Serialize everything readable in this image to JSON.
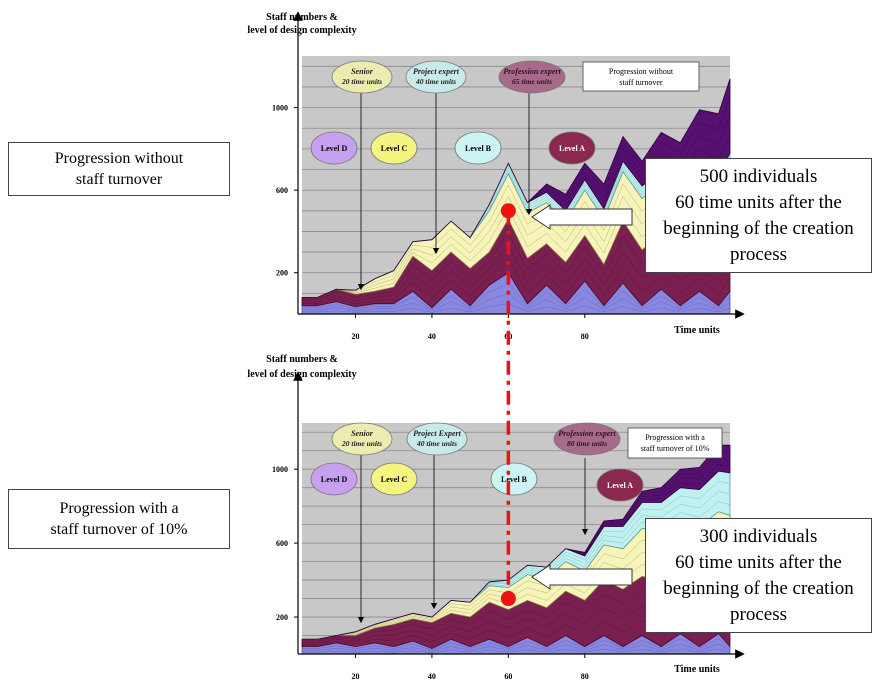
{
  "colors": {
    "plot_bg": "#c8c8c8",
    "band_bottom": "#8888e0",
    "band_maroon": "#7a2050",
    "band_yellow": "#f6f4b8",
    "band_cyan": "#c0f0f0",
    "band_purple": "#551070",
    "marker": "#ee1111",
    "level_d": "#c8a0f0",
    "level_c": "#f4f480",
    "level_b": "#ccf4f4",
    "level_a": "#8a2850",
    "senior": "#ecebb0",
    "project": "#c8eaea",
    "profession": "#a86a8a"
  },
  "left_labels": {
    "top": [
      "Progression without",
      "staff turnover"
    ],
    "bottom": [
      "Progression with a",
      "staff turnover of 10%"
    ]
  },
  "callouts": {
    "top": [
      "500 individuals",
      "60 time units after the",
      "beginning of the creation",
      "process"
    ],
    "bottom": [
      "300 individuals",
      "60 time units after the",
      "beginning of the creation",
      "process"
    ]
  },
  "chart_data": [
    {
      "type": "area",
      "title": "",
      "ylabel": [
        "Staff numbers &",
        "level of design complexity"
      ],
      "xlabel": "Time units",
      "x_ticks": [
        20,
        40,
        60,
        80
      ],
      "y_ticks": [
        200,
        600,
        1000
      ],
      "xlim": [
        6,
        118
      ],
      "ylim": [
        0,
        1250
      ],
      "legend_box": [
        "Progression without",
        "staff turnover"
      ],
      "level_labels": [
        "Level D",
        "Level C",
        "Level B",
        "Level A"
      ],
      "expert_labels": [
        {
          "lines": [
            "Senior",
            "20 time units"
          ],
          "x": 20
        },
        {
          "lines": [
            "Project expert",
            "40 time units"
          ],
          "x": 40
        },
        {
          "lines": [
            "Profession expert",
            "65 time units"
          ],
          "x": 65
        }
      ],
      "marker": {
        "x": 60,
        "y": 500
      },
      "x": [
        6,
        10,
        15,
        20,
        25,
        30,
        35,
        40,
        45,
        50,
        55,
        60,
        65,
        70,
        75,
        80,
        85,
        90,
        95,
        100,
        105,
        110,
        115,
        118
      ],
      "series": [
        {
          "band": "bottom",
          "values": [
            40,
            40,
            60,
            35,
            50,
            50,
            110,
            30,
            120,
            40,
            140,
            200,
            50,
            140,
            50,
            160,
            40,
            150,
            40,
            120,
            40,
            110,
            40,
            110
          ]
        },
        {
          "band": "maroon",
          "values": [
            40,
            40,
            60,
            60,
            60,
            80,
            170,
            180,
            180,
            180,
            160,
            260,
            220,
            200,
            200,
            220,
            200,
            300,
            270,
            270,
            240,
            250,
            220,
            240
          ]
        },
        {
          "band": "yellow",
          "values": [
            0,
            0,
            0,
            20,
            60,
            80,
            70,
            150,
            150,
            150,
            200,
            220,
            220,
            200,
            200,
            220,
            220,
            240,
            250,
            250,
            280,
            300,
            320,
            330
          ]
        },
        {
          "band": "cyan",
          "values": [
            0,
            0,
            0,
            0,
            0,
            0,
            0,
            0,
            0,
            0,
            30,
            50,
            50,
            50,
            50,
            50,
            50,
            50,
            60,
            60,
            70,
            80,
            90,
            100
          ]
        },
        {
          "band": "purple",
          "values": [
            0,
            0,
            0,
            0,
            0,
            0,
            0,
            0,
            0,
            0,
            0,
            0,
            0,
            40,
            80,
            80,
            120,
            120,
            120,
            180,
            200,
            250,
            300,
            360
          ]
        }
      ]
    },
    {
      "type": "area",
      "title": "",
      "ylabel": [
        "Staff numbers &",
        "level of design complexity"
      ],
      "xlabel": "Time units",
      "x_ticks": [
        20,
        40,
        60,
        80
      ],
      "y_ticks": [
        200,
        600,
        1000
      ],
      "xlim": [
        6,
        118
      ],
      "ylim": [
        0,
        1250
      ],
      "legend_box": [
        "Progression with a",
        "staff turnover of 10%"
      ],
      "level_labels": [
        "Level D",
        "Level C",
        "Level B",
        "Level A"
      ],
      "expert_labels": [
        {
          "lines": [
            "Senior",
            "20 time units"
          ],
          "x": 20
        },
        {
          "lines": [
            "Project Expert",
            "40 time units"
          ],
          "x": 40
        },
        {
          "lines": [
            "Profession expert",
            "80 time units"
          ],
          "x": 80
        }
      ],
      "marker": {
        "x": 60,
        "y": 300
      },
      "x": [
        6,
        10,
        15,
        20,
        25,
        30,
        35,
        40,
        45,
        50,
        55,
        60,
        65,
        70,
        75,
        80,
        85,
        90,
        95,
        100,
        105,
        110,
        115,
        118
      ],
      "series": [
        {
          "band": "bottom",
          "values": [
            40,
            40,
            60,
            40,
            60,
            40,
            70,
            30,
            80,
            40,
            80,
            40,
            90,
            40,
            100,
            40,
            100,
            40,
            100,
            40,
            110,
            40,
            110,
            40
          ]
        },
        {
          "band": "maroon",
          "values": [
            40,
            40,
            40,
            60,
            80,
            120,
            120,
            140,
            140,
            160,
            200,
            200,
            200,
            210,
            240,
            250,
            300,
            310,
            320,
            360,
            350,
            380,
            360,
            390
          ]
        },
        {
          "band": "yellow",
          "values": [
            0,
            0,
            0,
            20,
            20,
            30,
            30,
            30,
            70,
            80,
            90,
            120,
            140,
            160,
            160,
            160,
            190,
            220,
            260,
            260,
            260,
            270,
            300,
            320
          ]
        },
        {
          "band": "cyan",
          "values": [
            0,
            0,
            0,
            0,
            0,
            0,
            0,
            0,
            0,
            0,
            20,
            40,
            50,
            60,
            70,
            80,
            100,
            120,
            140,
            160,
            180,
            200,
            220,
            230
          ]
        },
        {
          "band": "purple",
          "values": [
            0,
            0,
            0,
            0,
            0,
            0,
            0,
            0,
            0,
            0,
            0,
            0,
            0,
            0,
            0,
            20,
            30,
            40,
            60,
            80,
            100,
            120,
            140,
            150
          ]
        }
      ]
    }
  ]
}
